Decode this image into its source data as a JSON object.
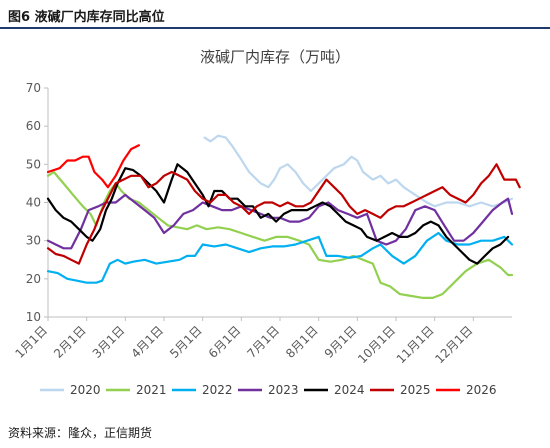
{
  "figure_title": "图6 液碱厂内库存同比高位",
  "source": "资料来源：隆众，正信期货",
  "chart_data": {
    "type": "line",
    "title": "液碱厂内库存（万吨）",
    "xlabel": "",
    "ylabel": "",
    "ylim": [
      10,
      70
    ],
    "yticks": [
      10,
      20,
      30,
      40,
      50,
      60,
      70
    ],
    "grid": false,
    "legend_position": "bottom",
    "x_categories": [
      "1月1日",
      "2月1日",
      "3月1日",
      "4月1日",
      "5月1日",
      "6月1日",
      "7月1日",
      "8月1日",
      "9月1日",
      "10月1日",
      "11月1日",
      "12月1日"
    ],
    "x_domain": [
      1,
      13
    ],
    "series": [
      {
        "name": "2020",
        "color": "#bdd7ee",
        "points": [
          [
            5.05,
            57
          ],
          [
            5.2,
            56
          ],
          [
            5.4,
            57.5
          ],
          [
            5.6,
            57
          ],
          [
            5.75,
            55
          ],
          [
            5.95,
            52
          ],
          [
            6.2,
            48
          ],
          [
            6.5,
            45
          ],
          [
            6.7,
            44
          ],
          [
            6.85,
            46
          ],
          [
            7.0,
            49
          ],
          [
            7.2,
            50
          ],
          [
            7.4,
            48
          ],
          [
            7.6,
            45
          ],
          [
            7.8,
            43
          ],
          [
            8.0,
            45
          ],
          [
            8.2,
            47
          ],
          [
            8.4,
            49
          ],
          [
            8.65,
            50
          ],
          [
            8.85,
            52
          ],
          [
            9.0,
            51
          ],
          [
            9.15,
            48
          ],
          [
            9.4,
            46
          ],
          [
            9.6,
            47
          ],
          [
            9.8,
            45
          ],
          [
            10.0,
            46
          ],
          [
            10.2,
            44
          ],
          [
            10.5,
            42
          ],
          [
            10.8,
            40
          ],
          [
            11.0,
            39
          ],
          [
            11.3,
            40
          ],
          [
            11.6,
            40
          ],
          [
            11.9,
            39
          ],
          [
            12.2,
            40
          ],
          [
            12.5,
            39
          ],
          [
            12.8,
            40
          ],
          [
            13.0,
            41
          ]
        ]
      },
      {
        "name": "2021",
        "color": "#92d050",
        "points": [
          [
            1.0,
            47
          ],
          [
            1.15,
            48
          ],
          [
            1.4,
            45
          ],
          [
            1.65,
            42
          ],
          [
            1.9,
            39
          ],
          [
            2.1,
            37
          ],
          [
            2.25,
            34
          ],
          [
            2.45,
            40
          ],
          [
            2.6,
            43
          ],
          [
            2.75,
            45
          ],
          [
            2.9,
            43
          ],
          [
            3.1,
            41
          ],
          [
            3.35,
            40
          ],
          [
            3.6,
            38
          ],
          [
            3.85,
            36
          ],
          [
            4.1,
            34
          ],
          [
            4.35,
            33.5
          ],
          [
            4.6,
            33
          ],
          [
            4.85,
            34
          ],
          [
            5.1,
            33
          ],
          [
            5.4,
            33.5
          ],
          [
            5.7,
            33
          ],
          [
            6.0,
            32
          ],
          [
            6.3,
            31
          ],
          [
            6.6,
            30
          ],
          [
            6.9,
            31
          ],
          [
            7.2,
            31
          ],
          [
            7.5,
            30
          ],
          [
            7.75,
            29
          ],
          [
            8.0,
            25
          ],
          [
            8.3,
            24.5
          ],
          [
            8.6,
            25
          ],
          [
            8.9,
            26
          ],
          [
            9.15,
            25
          ],
          [
            9.4,
            24
          ],
          [
            9.6,
            19
          ],
          [
            9.85,
            18
          ],
          [
            10.1,
            16
          ],
          [
            10.4,
            15.5
          ],
          [
            10.7,
            15
          ],
          [
            10.95,
            15
          ],
          [
            11.2,
            16
          ],
          [
            11.5,
            19
          ],
          [
            11.8,
            22
          ],
          [
            12.1,
            24
          ],
          [
            12.4,
            25
          ],
          [
            12.7,
            23
          ],
          [
            12.9,
            21
          ],
          [
            13.0,
            21
          ]
        ]
      },
      {
        "name": "2022",
        "color": "#00b0f0",
        "points": [
          [
            1.0,
            22
          ],
          [
            1.25,
            21.5
          ],
          [
            1.5,
            20
          ],
          [
            1.75,
            19.5
          ],
          [
            2.0,
            19
          ],
          [
            2.25,
            19
          ],
          [
            2.4,
            19.5
          ],
          [
            2.6,
            24
          ],
          [
            2.8,
            25
          ],
          [
            3.0,
            24
          ],
          [
            3.2,
            24.5
          ],
          [
            3.5,
            25
          ],
          [
            3.8,
            24
          ],
          [
            4.1,
            24.5
          ],
          [
            4.4,
            25
          ],
          [
            4.6,
            26
          ],
          [
            4.8,
            26
          ],
          [
            5.0,
            29
          ],
          [
            5.3,
            28.5
          ],
          [
            5.6,
            29
          ],
          [
            5.9,
            28
          ],
          [
            6.2,
            27
          ],
          [
            6.5,
            28
          ],
          [
            6.8,
            28.5
          ],
          [
            7.1,
            28.5
          ],
          [
            7.4,
            29
          ],
          [
            7.7,
            30
          ],
          [
            8.0,
            31
          ],
          [
            8.2,
            26
          ],
          [
            8.5,
            26
          ],
          [
            8.8,
            25.5
          ],
          [
            9.1,
            26
          ],
          [
            9.4,
            28
          ],
          [
            9.6,
            29
          ],
          [
            9.9,
            26
          ],
          [
            10.2,
            24
          ],
          [
            10.5,
            26
          ],
          [
            10.8,
            30
          ],
          [
            11.1,
            32
          ],
          [
            11.3,
            30
          ],
          [
            11.6,
            29
          ],
          [
            11.9,
            29
          ],
          [
            12.2,
            30
          ],
          [
            12.5,
            30
          ],
          [
            12.8,
            31
          ],
          [
            13.0,
            29
          ]
        ]
      },
      {
        "name": "2023",
        "color": "#7030a0",
        "points": [
          [
            1.0,
            30
          ],
          [
            1.2,
            29
          ],
          [
            1.4,
            28
          ],
          [
            1.6,
            28
          ],
          [
            1.85,
            33
          ],
          [
            2.05,
            38
          ],
          [
            2.3,
            39
          ],
          [
            2.5,
            40
          ],
          [
            2.75,
            40
          ],
          [
            3.0,
            42
          ],
          [
            3.25,
            40
          ],
          [
            3.5,
            38
          ],
          [
            3.75,
            36
          ],
          [
            4.0,
            32
          ],
          [
            4.25,
            34
          ],
          [
            4.5,
            37
          ],
          [
            4.75,
            38
          ],
          [
            5.0,
            40
          ],
          [
            5.25,
            39
          ],
          [
            5.5,
            38
          ],
          [
            5.75,
            38
          ],
          [
            6.0,
            39
          ],
          [
            6.25,
            38
          ],
          [
            6.5,
            37
          ],
          [
            6.75,
            36
          ],
          [
            7.0,
            36
          ],
          [
            7.25,
            35
          ],
          [
            7.5,
            35
          ],
          [
            7.75,
            36
          ],
          [
            8.0,
            39
          ],
          [
            8.25,
            40
          ],
          [
            8.5,
            38
          ],
          [
            8.75,
            37
          ],
          [
            9.0,
            36
          ],
          [
            9.25,
            37
          ],
          [
            9.5,
            30
          ],
          [
            9.75,
            29
          ],
          [
            10.0,
            30
          ],
          [
            10.25,
            33
          ],
          [
            10.5,
            38
          ],
          [
            10.75,
            39
          ],
          [
            11.0,
            38
          ],
          [
            11.25,
            34
          ],
          [
            11.5,
            30
          ],
          [
            11.75,
            30
          ],
          [
            12.0,
            32
          ],
          [
            12.25,
            35
          ],
          [
            12.5,
            38
          ],
          [
            12.75,
            40
          ],
          [
            12.9,
            41
          ],
          [
            13.0,
            37
          ]
        ]
      },
      {
        "name": "2024",
        "color": "#000000",
        "points": [
          [
            1.0,
            41
          ],
          [
            1.2,
            38
          ],
          [
            1.4,
            36
          ],
          [
            1.6,
            35
          ],
          [
            1.8,
            33
          ],
          [
            2.0,
            31
          ],
          [
            2.15,
            30
          ],
          [
            2.35,
            33
          ],
          [
            2.5,
            38
          ],
          [
            2.65,
            41
          ],
          [
            2.8,
            45
          ],
          [
            3.0,
            49
          ],
          [
            3.2,
            48.5
          ],
          [
            3.4,
            47
          ],
          [
            3.6,
            45
          ],
          [
            3.8,
            43
          ],
          [
            4.0,
            40
          ],
          [
            4.2,
            46
          ],
          [
            4.35,
            50
          ],
          [
            4.6,
            48
          ],
          [
            4.8,
            45
          ],
          [
            5.0,
            42
          ],
          [
            5.15,
            39
          ],
          [
            5.3,
            43
          ],
          [
            5.5,
            43
          ],
          [
            5.7,
            41
          ],
          [
            5.9,
            41
          ],
          [
            6.1,
            39
          ],
          [
            6.3,
            39
          ],
          [
            6.5,
            36
          ],
          [
            6.7,
            37
          ],
          [
            6.9,
            35
          ],
          [
            7.1,
            37
          ],
          [
            7.3,
            38
          ],
          [
            7.5,
            38
          ],
          [
            7.7,
            38
          ],
          [
            7.9,
            39
          ],
          [
            8.1,
            40
          ],
          [
            8.3,
            39
          ],
          [
            8.5,
            37
          ],
          [
            8.7,
            35
          ],
          [
            8.9,
            34
          ],
          [
            9.1,
            33
          ],
          [
            9.25,
            31
          ],
          [
            9.5,
            30
          ],
          [
            9.7,
            31
          ],
          [
            9.9,
            32
          ],
          [
            10.1,
            31
          ],
          [
            10.3,
            31
          ],
          [
            10.5,
            32
          ],
          [
            10.7,
            34
          ],
          [
            10.9,
            35
          ],
          [
            11.1,
            34
          ],
          [
            11.3,
            31
          ],
          [
            11.5,
            29
          ],
          [
            11.7,
            27
          ],
          [
            11.9,
            25
          ],
          [
            12.1,
            24
          ],
          [
            12.3,
            26
          ],
          [
            12.5,
            28
          ],
          [
            12.7,
            29
          ],
          [
            12.9,
            31
          ]
        ]
      },
      {
        "name": "2025",
        "color": "#c00000",
        "points": [
          [
            1.0,
            28
          ],
          [
            1.2,
            26.5
          ],
          [
            1.4,
            26
          ],
          [
            1.6,
            25
          ],
          [
            1.8,
            24
          ],
          [
            2.0,
            29
          ],
          [
            2.2,
            33
          ],
          [
            2.35,
            37
          ],
          [
            2.55,
            41
          ],
          [
            2.75,
            45
          ],
          [
            2.95,
            46
          ],
          [
            3.15,
            47
          ],
          [
            3.4,
            47
          ],
          [
            3.6,
            44
          ],
          [
            3.8,
            45
          ],
          [
            4.0,
            47
          ],
          [
            4.2,
            48
          ],
          [
            4.4,
            47
          ],
          [
            4.6,
            46
          ],
          [
            4.8,
            43
          ],
          [
            5.0,
            41
          ],
          [
            5.2,
            40
          ],
          [
            5.4,
            42
          ],
          [
            5.6,
            42
          ],
          [
            5.8,
            40
          ],
          [
            6.0,
            39
          ],
          [
            6.2,
            37
          ],
          [
            6.4,
            39
          ],
          [
            6.6,
            40
          ],
          [
            6.8,
            40
          ],
          [
            7.0,
            39
          ],
          [
            7.2,
            40
          ],
          [
            7.4,
            39
          ],
          [
            7.6,
            39
          ],
          [
            7.8,
            40
          ],
          [
            8.0,
            43
          ],
          [
            8.2,
            46
          ],
          [
            8.4,
            44
          ],
          [
            8.6,
            42
          ],
          [
            8.8,
            39
          ],
          [
            9.0,
            37
          ],
          [
            9.2,
            38
          ],
          [
            9.4,
            37
          ],
          [
            9.6,
            36
          ],
          [
            9.8,
            38
          ],
          [
            10.0,
            39
          ],
          [
            10.2,
            39
          ],
          [
            10.4,
            40
          ],
          [
            10.6,
            41
          ],
          [
            10.8,
            42
          ],
          [
            11.0,
            43
          ],
          [
            11.2,
            44
          ],
          [
            11.4,
            42
          ],
          [
            11.6,
            41
          ],
          [
            11.8,
            40
          ],
          [
            12.0,
            42
          ],
          [
            12.2,
            45
          ],
          [
            12.4,
            47
          ],
          [
            12.6,
            50
          ],
          [
            12.8,
            46
          ],
          [
            13.0,
            46
          ],
          [
            13.1,
            46
          ],
          [
            13.2,
            44
          ]
        ]
      },
      {
        "name": "2026",
        "color": "#ff0000",
        "points": [
          [
            1.0,
            48
          ],
          [
            1.3,
            49
          ],
          [
            1.5,
            51
          ],
          [
            1.7,
            51
          ],
          [
            1.9,
            52
          ],
          [
            2.05,
            52
          ],
          [
            2.2,
            48
          ],
          [
            2.4,
            46
          ],
          [
            2.55,
            44
          ],
          [
            2.75,
            47
          ],
          [
            2.95,
            51
          ],
          [
            3.15,
            54
          ],
          [
            3.35,
            55
          ]
        ]
      }
    ]
  }
}
